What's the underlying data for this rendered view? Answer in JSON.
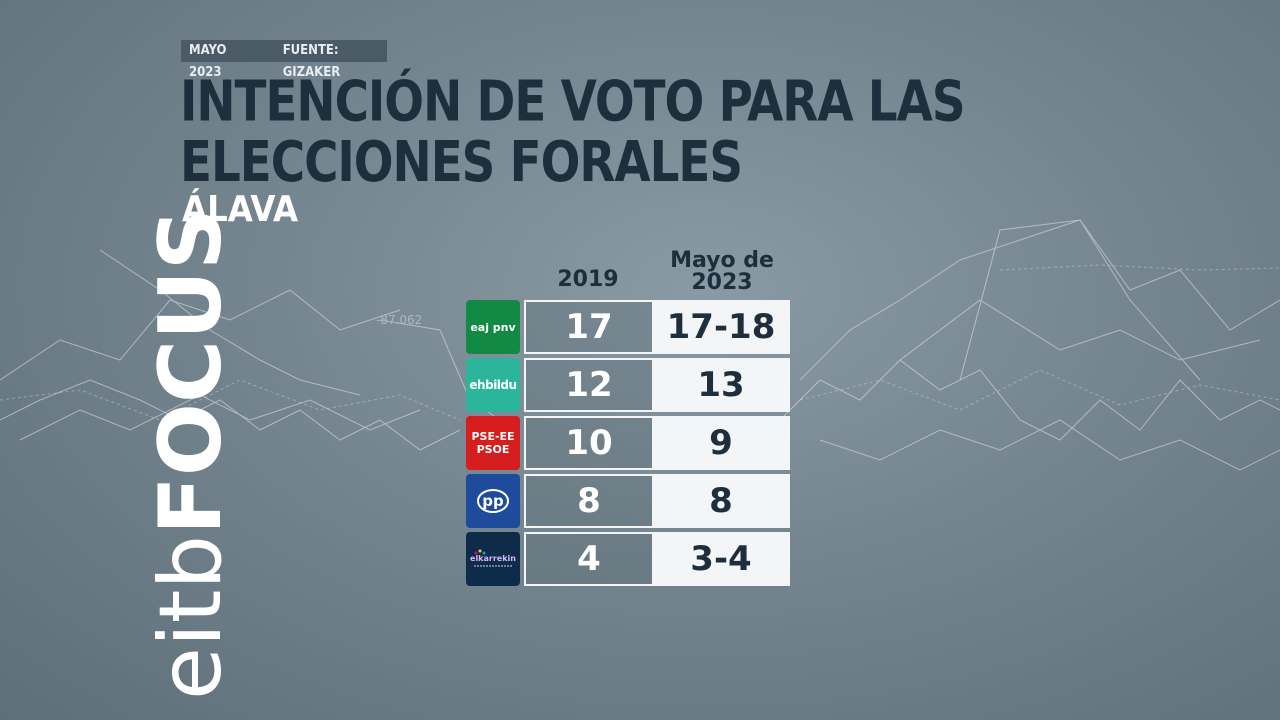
{
  "header": {
    "date": "MAYO 2023",
    "source": "FUENTE: GIZAKER",
    "title": "INTENCIÓN DE VOTO PARA LAS ELECCIONES FORALES",
    "subtitle": "ÁLAVA"
  },
  "brand": {
    "logo_text_1": "eitb",
    "logo_text_2": "FOCUS"
  },
  "background": {
    "ticker_value": "-87.062"
  },
  "table": {
    "col_2019": "2019",
    "col_2023_line1": "Mayo de",
    "col_2023_line2": "2023",
    "rows": [
      {
        "party_logo_text": "eaj pnv",
        "party_icon": "eaj-pnv-logo-icon",
        "color": "#138a43",
        "v2019": "17",
        "v2023": "17-18"
      },
      {
        "party_logo_text": "ehbildu",
        "party_icon": "ehbildu-logo-icon",
        "color": "#2bb69b",
        "v2019": "12",
        "v2023": "13"
      },
      {
        "party_logo_text": "PSE-EE PSOE",
        "party_icon": "pse-ee-psoe-logo-icon",
        "color": "#d71e1f",
        "v2019": "10",
        "v2023": "9"
      },
      {
        "party_logo_text": "pp",
        "party_icon": "pp-logo-icon",
        "color": "#1f4b9c",
        "v2019": "8",
        "v2023": "8"
      },
      {
        "party_logo_text": "elkarrekin",
        "party_icon": "elkarrekin-logo-icon",
        "color": "#0e2b4a",
        "v2019": "4",
        "v2023": "3-4"
      }
    ]
  }
}
